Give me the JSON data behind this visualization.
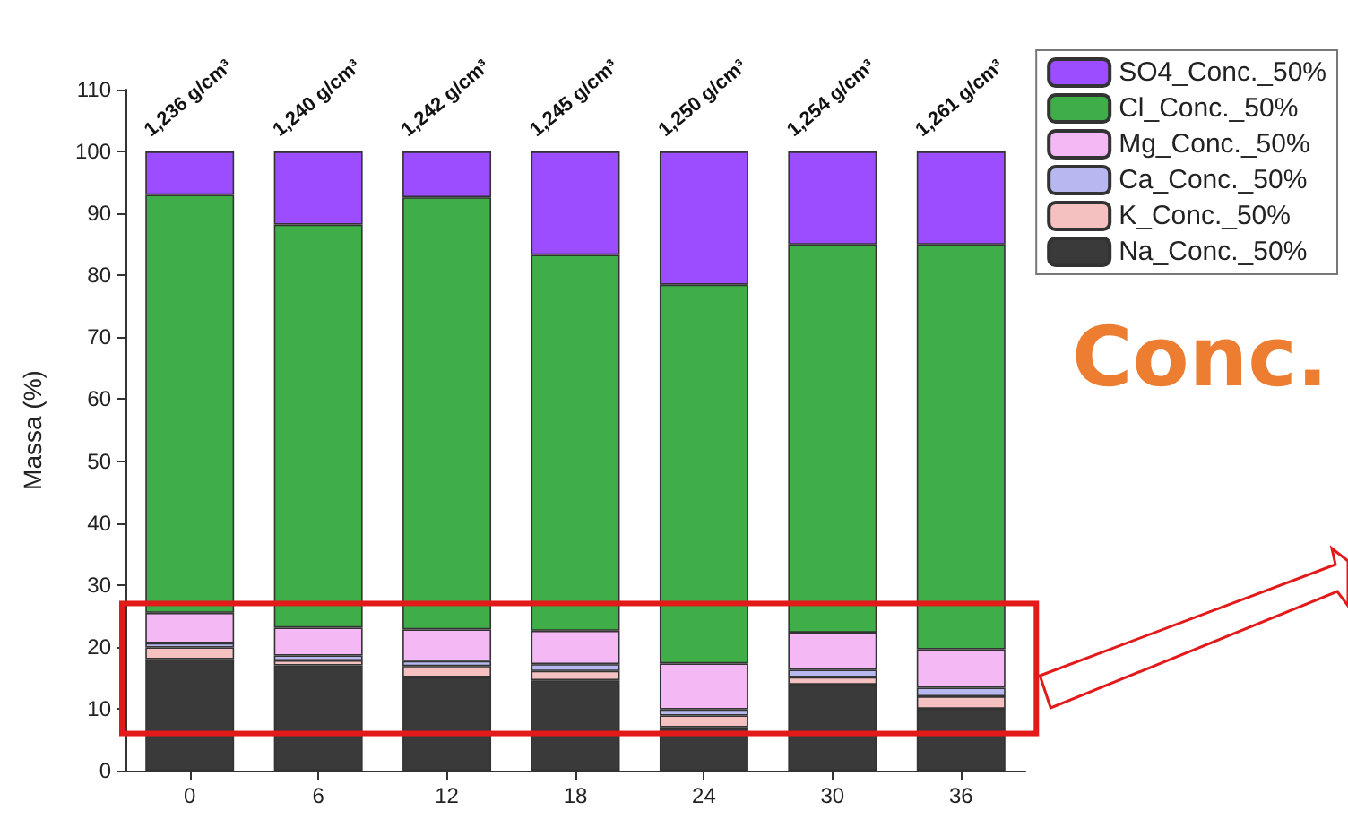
{
  "chart_data": {
    "type": "bar",
    "stacked": true,
    "ylabel": "Massa (%)",
    "categories": [
      "0",
      "6",
      "12",
      "18",
      "24",
      "30",
      "36"
    ],
    "series": [
      {
        "name": "Na_Conc._50%",
        "color": "#3a3a3a",
        "values": [
          18.0,
          17.0,
          15.1,
          14.6,
          7.0,
          13.9,
          10.0
        ]
      },
      {
        "name": "K_Conc._50%",
        "color": "#f4c0c0",
        "values": [
          1.9,
          0.8,
          1.8,
          1.5,
          1.9,
          1.2,
          2.0
        ]
      },
      {
        "name": "Ca_Conc._50%",
        "color": "#b8b8f0",
        "values": [
          0.7,
          0.8,
          0.8,
          1.1,
          1.0,
          1.2,
          1.4
        ]
      },
      {
        "name": "Mg_Conc._50%",
        "color": "#f4b8f4",
        "values": [
          4.9,
          4.5,
          5.1,
          5.4,
          7.4,
          6.0,
          6.2
        ]
      },
      {
        "name": "Cl_Conc._50%",
        "color": "#3fae49",
        "values": [
          67.5,
          65.1,
          69.8,
          60.7,
          61.2,
          62.7,
          65.4
        ]
      },
      {
        "name": "SO4_Conc._50%",
        "color": "#9b4dff",
        "values": [
          7.0,
          11.8,
          7.4,
          16.7,
          21.5,
          15.0,
          15.0
        ]
      }
    ],
    "ylim": [
      0,
      110
    ],
    "yticks": [
      0,
      10,
      20,
      30,
      40,
      50,
      60,
      70,
      80,
      90,
      100,
      110
    ],
    "grid": false,
    "legend": "top right",
    "annotations": [
      {
        "text": "1,236 g/cm³",
        "x": "0",
        "y": 100
      },
      {
        "text": "1,240 g/cm³",
        "x": "6",
        "y": 100
      },
      {
        "text": "1,242 g/cm³",
        "x": "12",
        "y": 100
      },
      {
        "text": "1,245 g/cm³",
        "x": "18",
        "y": 100
      },
      {
        "text": "1,250 g/cm³",
        "x": "24",
        "y": 100
      },
      {
        "text": "1,254 g/cm³",
        "x": "30",
        "y": 100
      },
      {
        "text": "1,261 g/cm³",
        "x": "36",
        "y": 100
      },
      "Conc."
    ]
  }
}
